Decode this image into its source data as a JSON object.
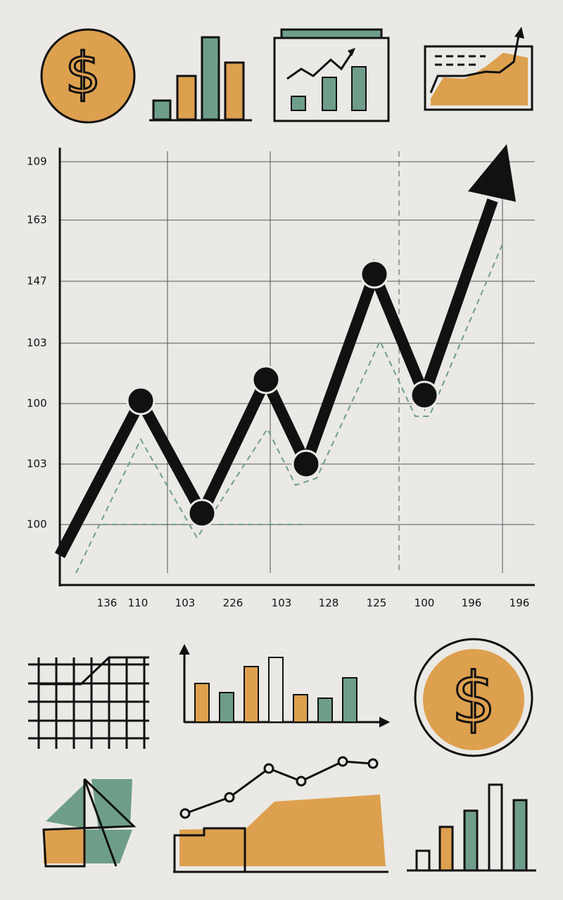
{
  "main_chart": {
    "y_labels": [
      "109",
      "163",
      "147",
      "103",
      "100",
      "103",
      "100"
    ],
    "x_labels": [
      "136",
      "110",
      "103",
      "226",
      "103",
      "128",
      "125",
      "100",
      "196",
      "196"
    ]
  }
}
